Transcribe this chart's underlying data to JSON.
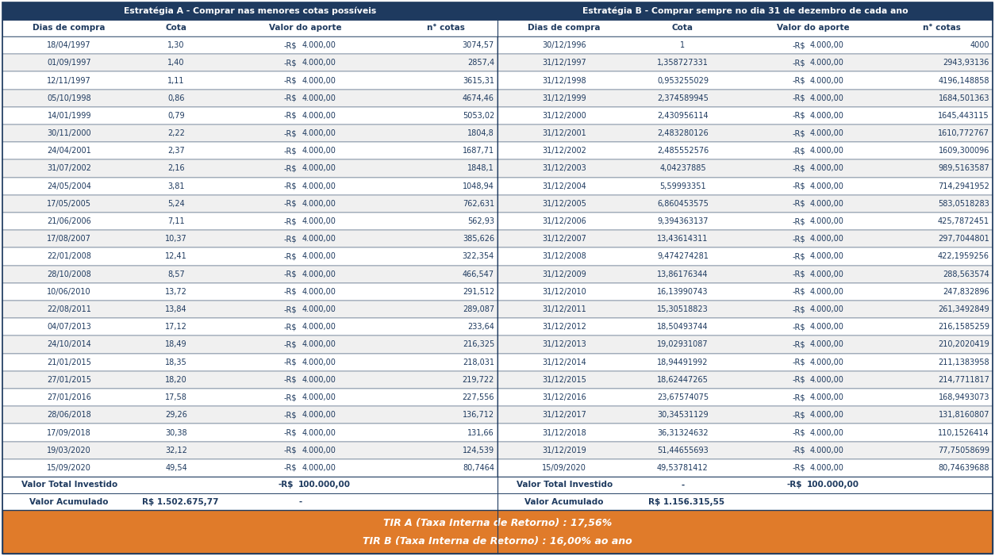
{
  "header_bg": "#1e3a5f",
  "header_text_color": "#ffffff",
  "col_header_text_color": "#1e3a5f",
  "row_text_color": "#1e3a5f",
  "footer_bg": "#e07b2a",
  "footer_text_color": "#ffffff",
  "table_bg": "#ffffff",
  "border_color": "#1e3a5f",
  "title_A": "Estratégia A - Comprar nas menores cotas possíveis",
  "title_B": "Estratégia B - Comprar sempre no dia 31 de dezembro de cada ano",
  "col_headers_A": [
    "Dias de compra",
    "Cota",
    "Valor do aporte",
    "n° cotas"
  ],
  "col_headers_B": [
    "Dias de compra",
    "Cota",
    "Valor do aporte",
    "n° cotas"
  ],
  "rows_A": [
    [
      "18/04/1997",
      "1,30",
      "-R$",
      "4.000,00",
      "3074,57"
    ],
    [
      "01/09/1997",
      "1,40",
      "-R$",
      "4.000,00",
      "2857,4"
    ],
    [
      "12/11/1997",
      "1,11",
      "-R$",
      "4.000,00",
      "3615,31"
    ],
    [
      "05/10/1998",
      "0,86",
      "-R$",
      "4.000,00",
      "4674,46"
    ],
    [
      "14/01/1999",
      "0,79",
      "-R$",
      "4.000,00",
      "5053,02"
    ],
    [
      "30/11/2000",
      "2,22",
      "-R$",
      "4.000,00",
      "1804,8"
    ],
    [
      "24/04/2001",
      "2,37",
      "-R$",
      "4.000,00",
      "1687,71"
    ],
    [
      "31/07/2002",
      "2,16",
      "-R$",
      "4.000,00",
      "1848,1"
    ],
    [
      "24/05/2004",
      "3,81",
      "-R$",
      "4.000,00",
      "1048,94"
    ],
    [
      "17/05/2005",
      "5,24",
      "-R$",
      "4.000,00",
      "762,631"
    ],
    [
      "21/06/2006",
      "7,11",
      "-R$",
      "4.000,00",
      "562,93"
    ],
    [
      "17/08/2007",
      "10,37",
      "-R$",
      "4.000,00",
      "385,626"
    ],
    [
      "22/01/2008",
      "12,41",
      "-R$",
      "4.000,00",
      "322,354"
    ],
    [
      "28/10/2008",
      "8,57",
      "-R$",
      "4.000,00",
      "466,547"
    ],
    [
      "10/06/2010",
      "13,72",
      "-R$",
      "4.000,00",
      "291,512"
    ],
    [
      "22/08/2011",
      "13,84",
      "-R$",
      "4.000,00",
      "289,087"
    ],
    [
      "04/07/2013",
      "17,12",
      "-R$",
      "4.000,00",
      "233,64"
    ],
    [
      "24/10/2014",
      "18,49",
      "-R$",
      "4.000,00",
      "216,325"
    ],
    [
      "21/01/2015",
      "18,35",
      "-R$",
      "4.000,00",
      "218,031"
    ],
    [
      "27/01/2015",
      "18,20",
      "-R$",
      "4.000,00",
      "219,722"
    ],
    [
      "27/01/2016",
      "17,58",
      "-R$",
      "4.000,00",
      "227,556"
    ],
    [
      "28/06/2018",
      "29,26",
      "-R$",
      "4.000,00",
      "136,712"
    ],
    [
      "17/09/2018",
      "30,38",
      "-R$",
      "4.000,00",
      "131,66"
    ],
    [
      "19/03/2020",
      "32,12",
      "-R$",
      "4.000,00",
      "124,539"
    ],
    [
      "15/09/2020",
      "49,54",
      "-R$",
      "4.000,00",
      "80,7464"
    ]
  ],
  "rows_B": [
    [
      "30/12/1996",
      "1",
      "-R$",
      "4.000,00",
      "4000"
    ],
    [
      "31/12/1997",
      "1,358727331",
      "-R$",
      "4.000,00",
      "2943,93136"
    ],
    [
      "31/12/1998",
      "0,953255029",
      "-R$",
      "4.000,00",
      "4196,148858"
    ],
    [
      "31/12/1999",
      "2,374589945",
      "-R$",
      "4.000,00",
      "1684,501363"
    ],
    [
      "31/12/2000",
      "2,430956114",
      "-R$",
      "4.000,00",
      "1645,443115"
    ],
    [
      "31/12/2001",
      "2,483280126",
      "-R$",
      "4.000,00",
      "1610,772767"
    ],
    [
      "31/12/2002",
      "2,485552576",
      "-R$",
      "4.000,00",
      "1609,300096"
    ],
    [
      "31/12/2003",
      "4,04237885",
      "-R$",
      "4.000,00",
      "989,5163587"
    ],
    [
      "31/12/2004",
      "5,59993351",
      "-R$",
      "4.000,00",
      "714,2941952"
    ],
    [
      "31/12/2005",
      "6,860453575",
      "-R$",
      "4.000,00",
      "583,0518283"
    ],
    [
      "31/12/2006",
      "9,394363137",
      "-R$",
      "4.000,00",
      "425,7872451"
    ],
    [
      "31/12/2007",
      "13,43614311",
      "-R$",
      "4.000,00",
      "297,7044801"
    ],
    [
      "31/12/2008",
      "9,474274281",
      "-R$",
      "4.000,00",
      "422,1959256"
    ],
    [
      "31/12/2009",
      "13,86176344",
      "-R$",
      "4.000,00",
      "288,563574"
    ],
    [
      "31/12/2010",
      "16,13990743",
      "-R$",
      "4.000,00",
      "247,832896"
    ],
    [
      "31/12/2011",
      "15,30518823",
      "-R$",
      "4.000,00",
      "261,3492849"
    ],
    [
      "31/12/2012",
      "18,50493744",
      "-R$",
      "4.000,00",
      "216,1585259"
    ],
    [
      "31/12/2013",
      "19,02931087",
      "-R$",
      "4.000,00",
      "210,2020419"
    ],
    [
      "31/12/2014",
      "18,94491992",
      "-R$",
      "4.000,00",
      "211,1383958"
    ],
    [
      "31/12/2015",
      "18,62447265",
      "-R$",
      "4.000,00",
      "214,7711817"
    ],
    [
      "31/12/2016",
      "23,67574075",
      "-R$",
      "4.000,00",
      "168,9493073"
    ],
    [
      "31/12/2017",
      "30,34531129",
      "-R$",
      "4.000,00",
      "131,8160807"
    ],
    [
      "31/12/2018",
      "36,31324632",
      "-R$",
      "4.000,00",
      "110,1526414"
    ],
    [
      "31/12/2019",
      "51,44655693",
      "-R$",
      "4.000,00",
      "77,75058699"
    ],
    [
      "15/09/2020",
      "49,53781412",
      "-R$",
      "4.000,00",
      "80,74639688"
    ]
  ],
  "footer_line1": "TIR A (Taxa Interna de Retorno) : 17,56%",
  "footer_line2": "TIR B (Taxa Interna de Retorno) : 16,00% ao ano",
  "total_A_label": "Valor Total Investido",
  "total_B_label": "Valor Total Investido",
  "total_B_dash": "-",
  "acum_A_label": "Valor Acumulado",
  "acum_A_value": "R$ 1.502.675,77",
  "acum_B_label": "Valor Acumulado",
  "acum_B_value": "R$ 1.156.315,55"
}
